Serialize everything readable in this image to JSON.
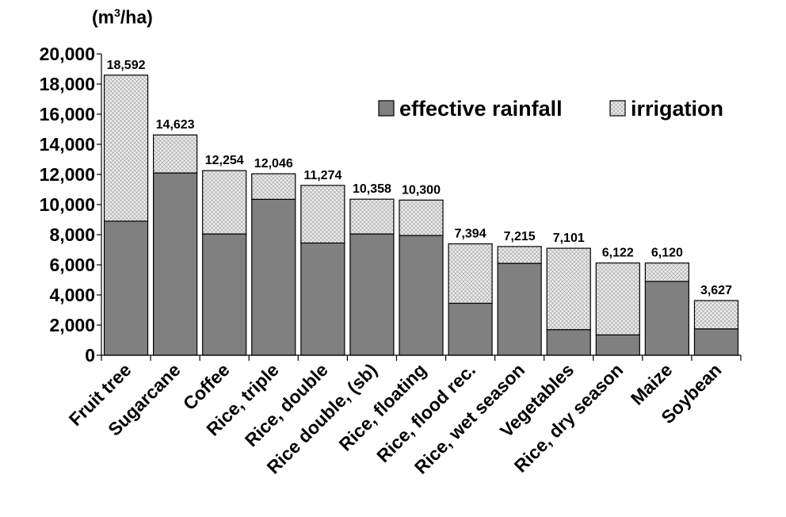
{
  "unit": {
    "prefix": "(m",
    "sup": "3",
    "suffix": "/ha)"
  },
  "chart_data": {
    "type": "bar",
    "stacked": true,
    "categories": [
      "Fruit tree",
      "Sugarcane",
      "Coffee",
      "Rice, triple",
      "Rice, double",
      "Rice double, (sb)",
      "Rice, floating",
      "Rice, flood rec.",
      "Rice, wet season",
      "Vegetables",
      "Rice, dry season",
      "Maize",
      "Soybean"
    ],
    "series": [
      {
        "name": "effective rainfall",
        "color": "#808080",
        "values": [
          8900,
          12100,
          8050,
          10350,
          7450,
          8050,
          7950,
          3450,
          6100,
          1700,
          1350,
          4900,
          1750
        ]
      },
      {
        "name": "irrigation",
        "color": "#e6e6e6",
        "pattern": "crosshatch",
        "values": [
          9692,
          2523,
          4204,
          1696,
          3824,
          2308,
          2350,
          3944,
          1115,
          5401,
          4772,
          1220,
          1877
        ]
      }
    ],
    "totals": [
      18592,
      14623,
      12254,
      12046,
      11274,
      10358,
      10300,
      7394,
      7215,
      7101,
      6122,
      6120,
      3627
    ],
    "total_labels": [
      "18,592",
      "14,623",
      "12,254",
      "12,046",
      "11,274",
      "10,358",
      "10,300",
      "7,394",
      "7,215",
      "7,101",
      "6,122",
      "6,120",
      "3,627"
    ],
    "ylim": [
      0,
      20000
    ],
    "yticks": [
      0,
      2000,
      4000,
      6000,
      8000,
      10000,
      12000,
      14000,
      16000,
      18000,
      20000
    ],
    "ytick_labels": [
      "0",
      "2,000",
      "4,000",
      "6,000",
      "8,000",
      "10,000",
      "12,000",
      "14,000",
      "16,000",
      "18,000",
      "20,000"
    ],
    "legend_position": "top-right",
    "grid": false
  }
}
